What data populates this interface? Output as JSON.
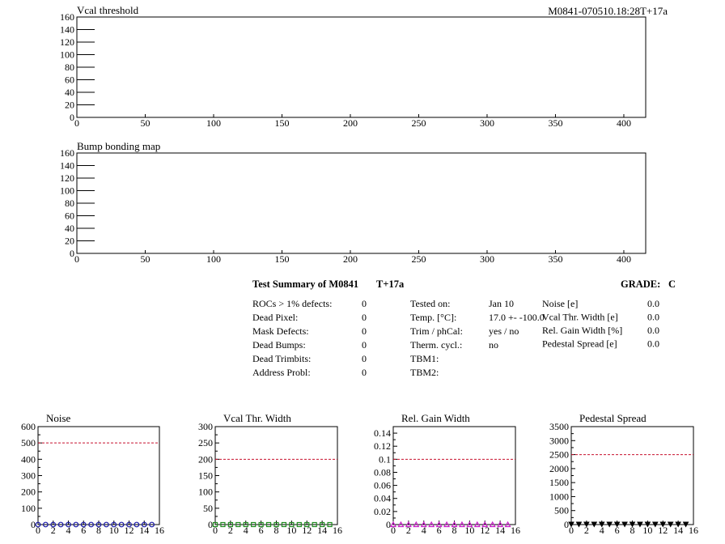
{
  "header": {
    "module_id": "M0841-070510.18:28T+17a"
  },
  "chart_data": [
    {
      "type": "heatmap",
      "title": "Vcal threshold",
      "xlim": [
        0,
        416
      ],
      "ylim": [
        0,
        160
      ],
      "xticks": [
        0,
        50,
        100,
        150,
        200,
        250,
        300,
        350,
        400
      ],
      "yticks": [
        0,
        20,
        40,
        60,
        80,
        100,
        120,
        140,
        160
      ],
      "values": []
    },
    {
      "type": "heatmap",
      "title": "Bump bonding map",
      "xlim": [
        0,
        416
      ],
      "ylim": [
        0,
        160
      ],
      "xticks": [
        0,
        50,
        100,
        150,
        200,
        250,
        300,
        350,
        400
      ],
      "yticks": [
        0,
        20,
        40,
        60,
        80,
        100,
        120,
        140,
        160
      ],
      "values": []
    },
    {
      "type": "scatter",
      "title": "Noise",
      "xlim": [
        0,
        16
      ],
      "ylim": [
        0,
        600
      ],
      "xticks": [
        0,
        2,
        4,
        6,
        8,
        10,
        12,
        14,
        16
      ],
      "yticks": [
        0,
        100,
        200,
        300,
        400,
        500,
        600
      ],
      "ytick_labels": [
        "0",
        "100",
        "200",
        "300",
        "400",
        "500",
        "600"
      ],
      "threshold": 500,
      "x": [
        0,
        1,
        2,
        3,
        4,
        5,
        6,
        7,
        8,
        9,
        10,
        11,
        12,
        13,
        14,
        15
      ],
      "values": [
        0,
        0,
        0,
        0,
        0,
        0,
        0,
        0,
        0,
        0,
        0,
        0,
        0,
        0,
        0,
        0
      ],
      "marker": "circle",
      "color": "#1a1aa8"
    },
    {
      "type": "scatter",
      "title": "Vcal Thr. Width",
      "xlim": [
        0,
        16
      ],
      "ylim": [
        0,
        300
      ],
      "xticks": [
        0,
        2,
        4,
        6,
        8,
        10,
        12,
        14,
        16
      ],
      "yticks": [
        0,
        50,
        100,
        150,
        200,
        250,
        300
      ],
      "ytick_labels": [
        "0",
        "50",
        "100",
        "150",
        "200",
        "250",
        "300"
      ],
      "threshold": 200,
      "x": [
        0,
        1,
        2,
        3,
        4,
        5,
        6,
        7,
        8,
        9,
        10,
        11,
        12,
        13,
        14,
        15
      ],
      "values": [
        0,
        0,
        0,
        0,
        0,
        0,
        0,
        0,
        0,
        0,
        0,
        0,
        0,
        0,
        0,
        0
      ],
      "marker": "square",
      "color": "#1f8a1f"
    },
    {
      "type": "scatter",
      "title": "Rel. Gain Width",
      "xlim": [
        0,
        16
      ],
      "ylim": [
        0,
        0.15
      ],
      "xticks": [
        0,
        2,
        4,
        6,
        8,
        10,
        12,
        14,
        16
      ],
      "yticks": [
        0,
        0.02,
        0.04,
        0.06,
        0.08,
        0.1,
        0.12,
        0.14
      ],
      "ytick_labels": [
        "0",
        "0.02",
        "0.04",
        "0.06",
        "0.08",
        "0.1",
        "0.12",
        "0.14"
      ],
      "threshold": 0.1,
      "x": [
        0,
        1,
        2,
        3,
        4,
        5,
        6,
        7,
        8,
        9,
        10,
        11,
        12,
        13,
        14,
        15
      ],
      "values": [
        0,
        0,
        0,
        0,
        0,
        0,
        0,
        0,
        0,
        0,
        0,
        0,
        0,
        0,
        0,
        0
      ],
      "marker": "triangle-up",
      "color": "#c81ec8"
    },
    {
      "type": "scatter",
      "title": "Pedestal Spread",
      "xlim": [
        0,
        16
      ],
      "ylim": [
        0,
        3500
      ],
      "xticks": [
        0,
        2,
        4,
        6,
        8,
        10,
        12,
        14,
        16
      ],
      "yticks": [
        0,
        500,
        1000,
        1500,
        2000,
        2500,
        3000,
        3500
      ],
      "ytick_labels": [
        "0",
        "500",
        "1000",
        "1500",
        "2000",
        "2500",
        "3000",
        "3500"
      ],
      "threshold": 2500,
      "x": [
        0,
        1,
        2,
        3,
        4,
        5,
        6,
        7,
        8,
        9,
        10,
        11,
        12,
        13,
        14,
        15
      ],
      "values": [
        0,
        0,
        0,
        0,
        0,
        0,
        0,
        0,
        0,
        0,
        0,
        0,
        0,
        0,
        0,
        0
      ],
      "marker": "triangle-down",
      "color": "#000000"
    }
  ],
  "summary": {
    "title": "Test Summary of M0841",
    "test": "T+17a",
    "grade_label": "GRADE:",
    "grade": "C",
    "left": [
      {
        "label": "ROCs > 1% defects:",
        "value": "0"
      },
      {
        "label": "Dead Pixel:",
        "value": "0"
      },
      {
        "label": "Mask Defects:",
        "value": "0"
      },
      {
        "label": "Dead Bumps:",
        "value": "0"
      },
      {
        "label": "Dead Trimbits:",
        "value": "0"
      },
      {
        "label": "Address Probl:",
        "value": "0"
      }
    ],
    "middle": [
      {
        "label": "Tested on:",
        "value": "Jan 10"
      },
      {
        "label": "Temp. [°C]:",
        "value": "17.0 +- -100.0"
      },
      {
        "label": "Trim / phCal:",
        "value": "yes / no"
      },
      {
        "label": "Therm. cycl.:",
        "value": "no"
      },
      {
        "label": "TBM1:",
        "value": ""
      },
      {
        "label": "TBM2:",
        "value": ""
      }
    ],
    "right": [
      {
        "label": "Noise [e]",
        "value": "0.0"
      },
      {
        "label": "Vcal Thr. Width [e]",
        "value": "0.0"
      },
      {
        "label": "Rel. Gain Width [%]",
        "value": "0.0"
      },
      {
        "label": "Pedestal Spread [e]",
        "value": "0.0"
      }
    ]
  },
  "colors": {
    "threshold_line": "#c8102e",
    "axis": "#000000"
  }
}
